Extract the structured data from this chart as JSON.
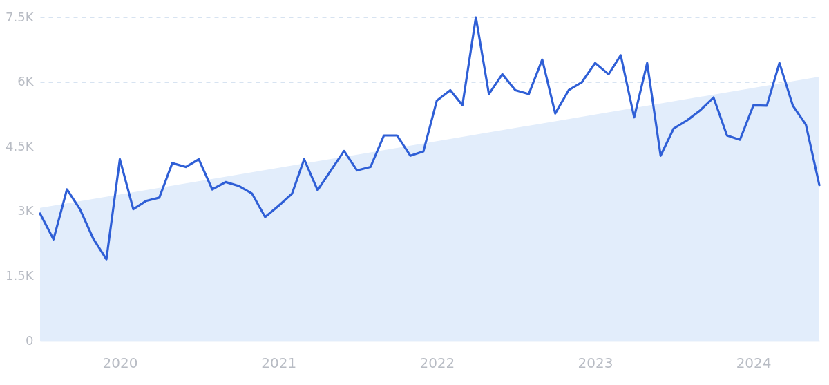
{
  "chart_data": {
    "type": "line",
    "x": [
      "2019-07",
      "2019-08",
      "2019-09",
      "2019-10",
      "2019-11",
      "2019-12",
      "2020-01",
      "2020-02",
      "2020-03",
      "2020-04",
      "2020-05",
      "2020-06",
      "2020-07",
      "2020-08",
      "2020-09",
      "2020-10",
      "2020-11",
      "2020-12",
      "2021-01",
      "2021-02",
      "2021-03",
      "2021-04",
      "2021-05",
      "2021-06",
      "2021-07",
      "2021-08",
      "2021-09",
      "2021-10",
      "2021-11",
      "2021-12",
      "2022-01",
      "2022-02",
      "2022-03",
      "2022-04",
      "2022-05",
      "2022-06",
      "2022-07",
      "2022-08",
      "2022-09",
      "2022-10",
      "2022-11",
      "2022-12",
      "2023-01",
      "2023-02",
      "2023-03",
      "2023-04",
      "2023-05",
      "2023-06",
      "2023-07",
      "2023-08",
      "2023-09",
      "2023-10",
      "2023-11",
      "2023-12",
      "2024-01",
      "2024-02",
      "2024-03",
      "2024-04",
      "2024-05",
      "2024-06"
    ],
    "series": [
      {
        "type": "area",
        "color": "#e2edfb",
        "x": [
          "2019-07",
          "2024-06"
        ],
        "values": [
          3080,
          6120
        ]
      },
      {
        "color": "#2f5fd6",
        "values": [
          2950,
          2350,
          3510,
          3050,
          2360,
          1890,
          4210,
          3050,
          3240,
          3320,
          4120,
          4030,
          4210,
          3510,
          3680,
          3590,
          3410,
          2870,
          3130,
          3410,
          4210,
          3490,
          3940,
          4400,
          3950,
          4030,
          4760,
          4760,
          4290,
          4390,
          5570,
          5810,
          5460,
          7500,
          5720,
          6180,
          5810,
          5720,
          6520,
          5270,
          5810,
          5990,
          6440,
          6180,
          6620,
          5180,
          6440,
          4290,
          4920,
          5110,
          5350,
          5640,
          4760,
          4660,
          5460,
          5450,
          6440,
          5450,
          5010,
          3610
        ]
      }
    ],
    "xlim": [
      "2019-07",
      "2024-06"
    ],
    "xticks": [
      "2020",
      "2021",
      "2022",
      "2023",
      "2024"
    ],
    "ylim": [
      0,
      7500
    ],
    "yticks": [
      0,
      {
        "value": 1500,
        "label": "1.5K"
      },
      {
        "value": 3000,
        "label": "3K"
      },
      {
        "value": 4500,
        "label": "4.5K"
      },
      {
        "value": 6000,
        "label": "6K"
      },
      {
        "value": 7500,
        "label": "7.5K"
      }
    ],
    "grid": "y",
    "legend": false,
    "marker": "none",
    "line_style": "solid"
  }
}
